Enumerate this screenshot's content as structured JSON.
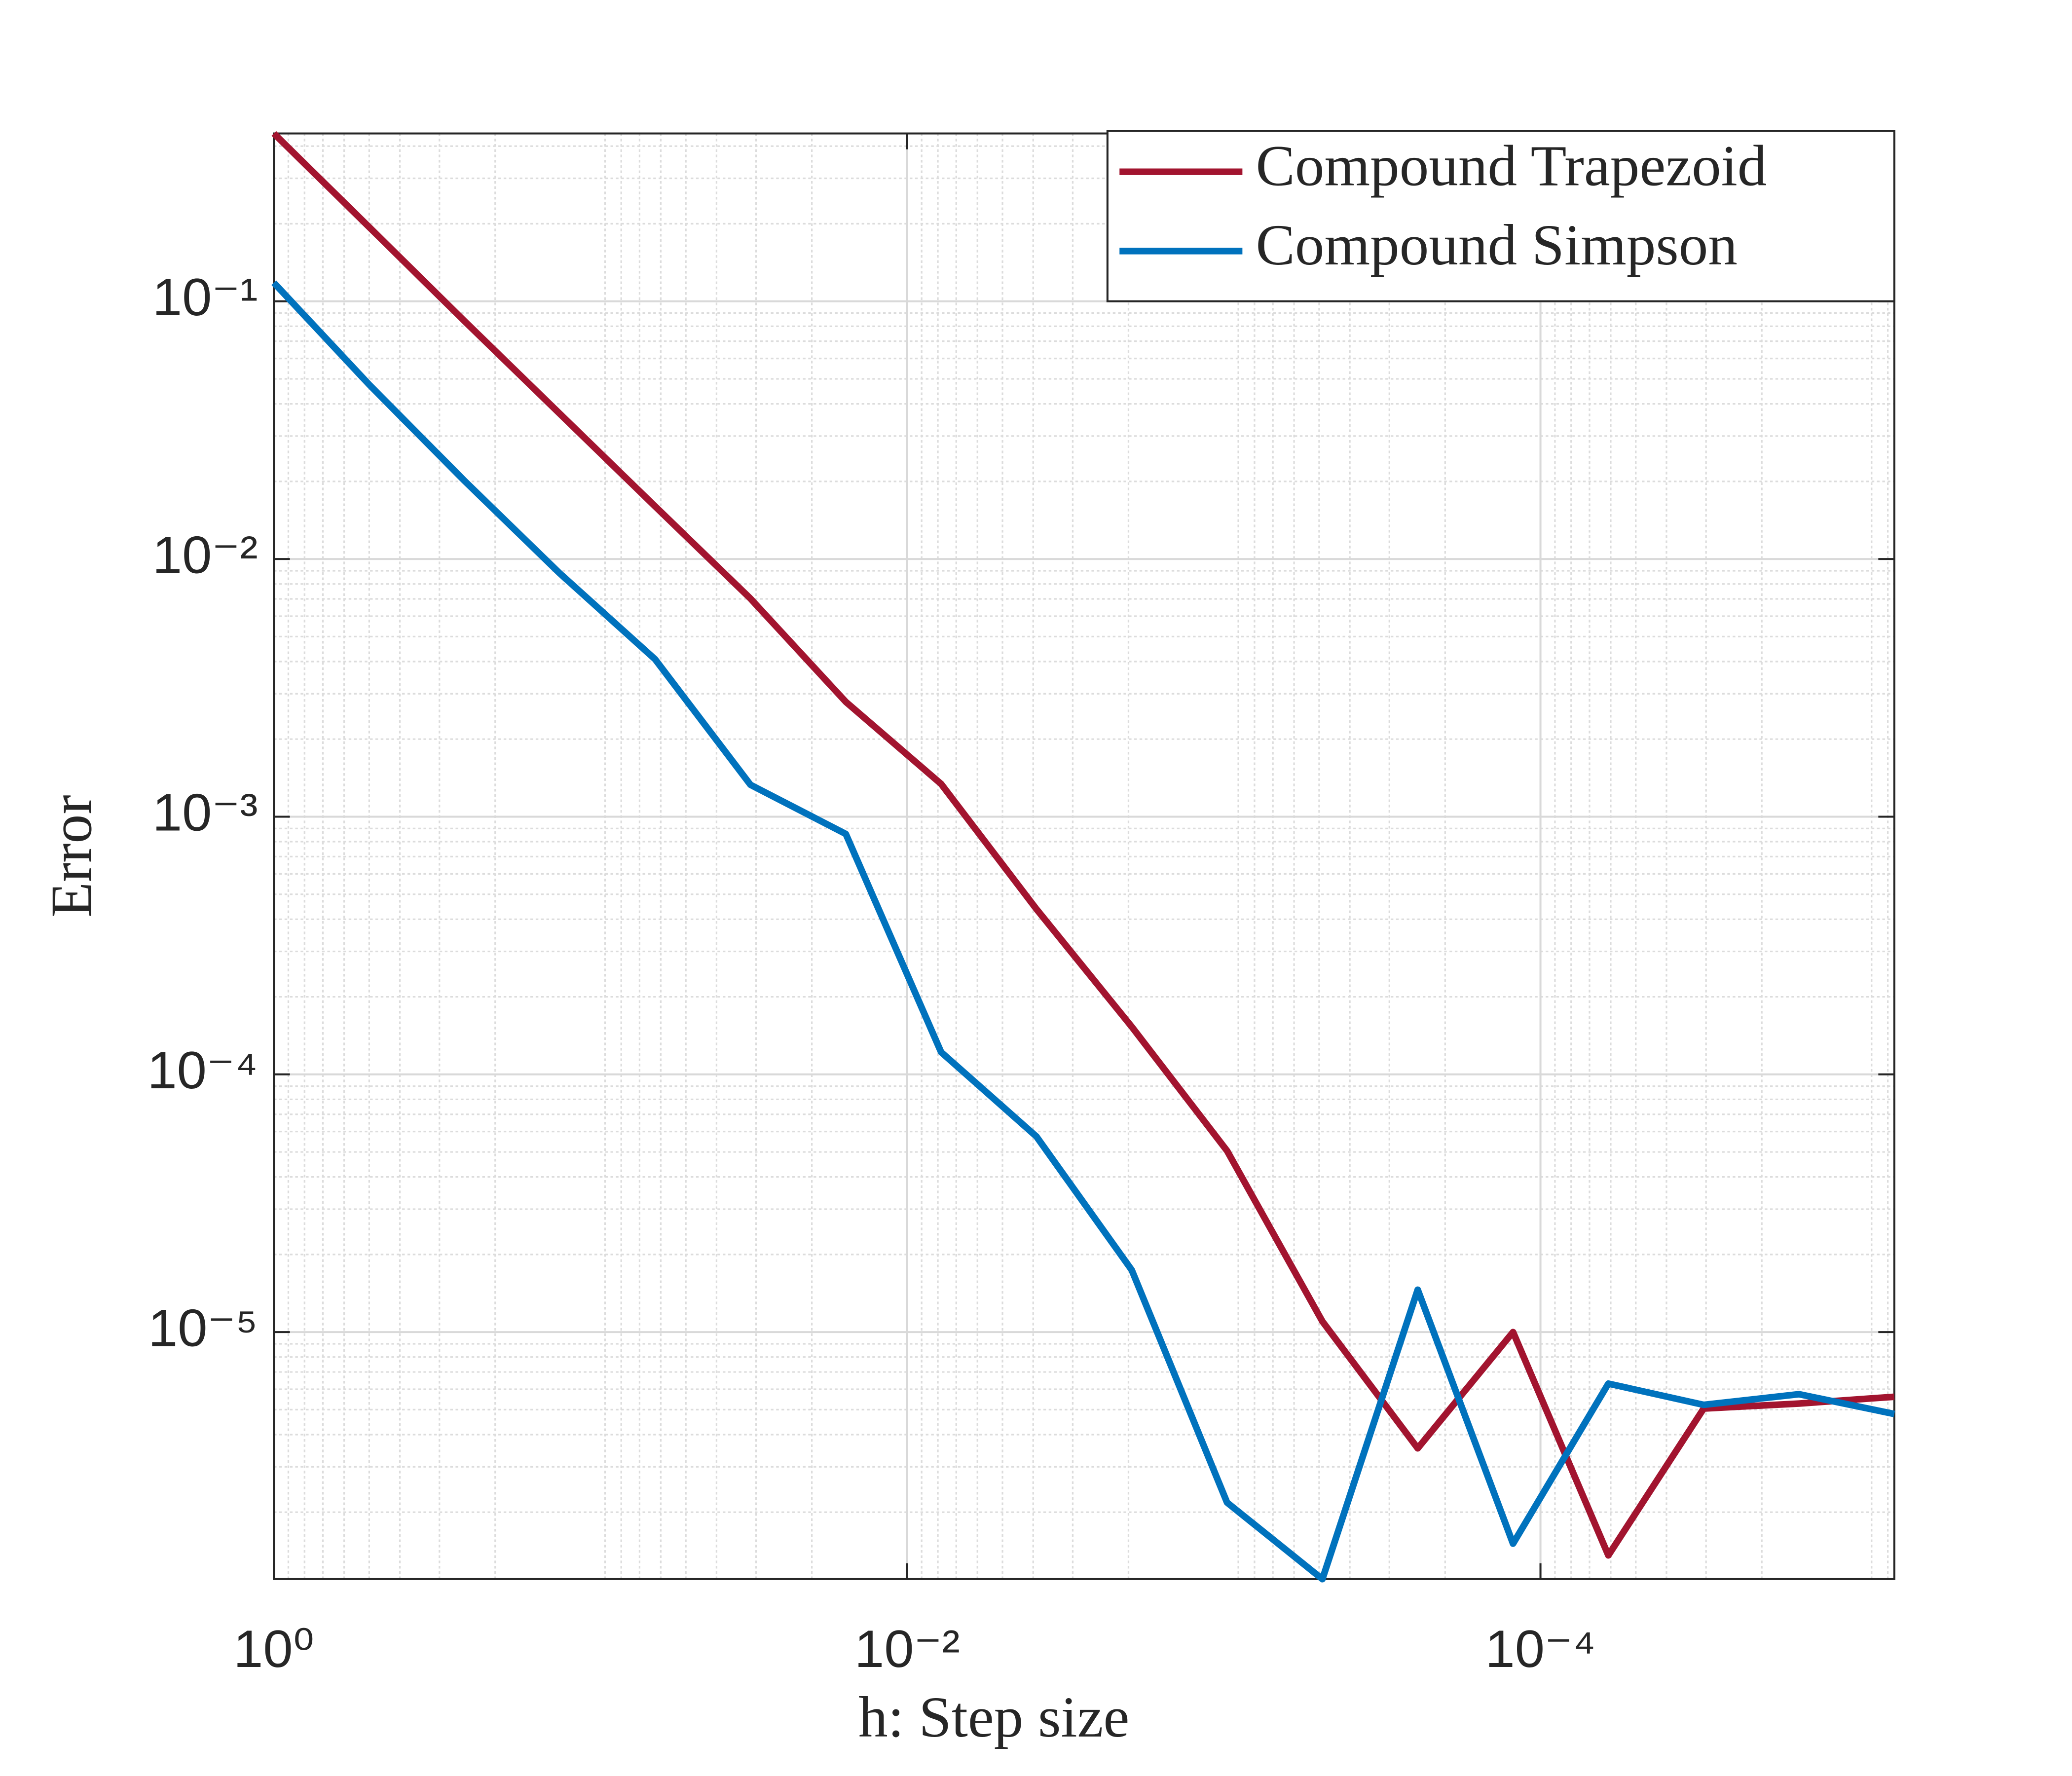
{
  "chart_data": {
    "type": "line",
    "xlabel": "h: Step size",
    "ylabel": "Error",
    "x": [
      1,
      0.5,
      0.25,
      0.125,
      0.0625,
      0.03125,
      0.015625,
      0.0078125,
      0.00390625,
      0.001953125,
      0.0009765625,
      0.00048828125,
      0.000244140625,
      0.0001220703125,
      6.103515625e-05,
      3.0517578125e-05,
      1.52587890625e-05,
      7.62939453125e-06
    ],
    "series": [
      {
        "name": "Compound Trapezoid",
        "color": "#a2142f",
        "values": [
          0.448,
          0.194,
          0.0838,
          0.0366,
          0.016,
          0.00702,
          0.00279,
          0.00134,
          0.000438,
          0.000153,
          5.05e-05,
          1.1e-05,
          3.54e-06,
          1e-05,
          1.36e-06,
          5.05e-06,
          5.28e-06,
          5.61e-06
        ]
      },
      {
        "name": "Compound Simpson",
        "color": "#0072bd",
        "values": [
          0.118,
          0.0475,
          0.0201,
          0.00879,
          0.00408,
          0.00133,
          0.000857,
          0.000122,
          5.74e-05,
          1.74e-05,
          2.18e-06,
          1.1e-06,
          1.46e-05,
          1.51e-06,
          6.31e-06,
          5.22e-06,
          5.74e-06,
          4.81e-06
        ]
      }
    ],
    "xlog": true,
    "ylog": true,
    "xlim": [
      1,
      7.62939453125e-06
    ],
    "ylim": [
      1.1e-06,
      0.448
    ],
    "xticks": [
      {
        "value": 1,
        "label": "10⁰"
      },
      {
        "value": 0.01,
        "label": "10⁻²"
      },
      {
        "value": 0.0001,
        "label": "10⁻⁴"
      }
    ],
    "yticks": [
      {
        "value": 0.1,
        "label": "10⁻¹"
      },
      {
        "value": 0.01,
        "label": "10⁻²"
      },
      {
        "value": 0.001,
        "label": "10⁻³"
      },
      {
        "value": 0.0001,
        "label": "10⁻⁴"
      },
      {
        "value": 1e-05,
        "label": "10⁻⁵"
      }
    ],
    "grid": true,
    "minor_grid": true,
    "legend": "northeast"
  }
}
